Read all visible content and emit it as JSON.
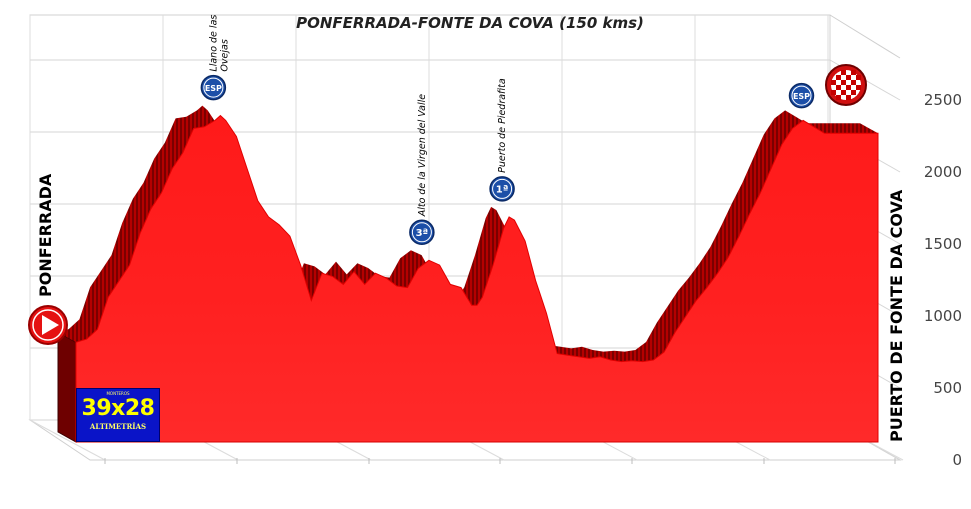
{
  "chart_data": {
    "type": "area",
    "title": "PONFERRADA-FONTE DA COVA (150 kms)",
    "start_label": "PONFERRADA",
    "finish_label": "PUERTO DE FONTE DA COVA",
    "y_ticks": [
      "0",
      "500",
      "1000",
      "1500",
      "2000",
      "2500"
    ],
    "ylim": [
      0,
      2500
    ],
    "xlim": [
      0,
      150
    ],
    "grid": true,
    "fill_color": "#ff1a1a",
    "series": [
      {
        "x": [
          0,
          2,
          4,
          6,
          8,
          10,
          12,
          14,
          16,
          18,
          20,
          22,
          24,
          26,
          27,
          28,
          30,
          32,
          34,
          36,
          38,
          40,
          42,
          44,
          46,
          48,
          50,
          52,
          54,
          56,
          58,
          60,
          62,
          64,
          66,
          68,
          70,
          72,
          74,
          75,
          76,
          78,
          80,
          81,
          82,
          84,
          86,
          87,
          88,
          90,
          92,
          94,
          96,
          98,
          100,
          102,
          104,
          106,
          108,
          110,
          112,
          114,
          116,
          118,
          120,
          122,
          124,
          126,
          128,
          130,
          132,
          134,
          136,
          138,
          140,
          142,
          144,
          146,
          148,
          150
        ],
        "y": [
          620,
          640,
          700,
          900,
          1000,
          1100,
          1300,
          1450,
          1550,
          1700,
          1800,
          1950,
          1960,
          2000,
          2030,
          2000,
          1900,
          1700,
          1500,
          1400,
          1350,
          1280,
          1100,
          880,
          1050,
          1030,
          980,
          1060,
          980,
          1050,
          1020,
          970,
          960,
          1080,
          1130,
          1100,
          980,
          960,
          850,
          850,
          900,
          1100,
          1330,
          1400,
          1380,
          1250,
          1000,
          900,
          800,
          550,
          540,
          530,
          520,
          530,
          510,
          500,
          505,
          500,
          510,
          560,
          680,
          780,
          880,
          960,
          1050,
          1150,
          1280,
          1420,
          1550,
          1700,
          1850,
          1950,
          2000,
          1960,
          1920,
          1920,
          1920,
          1920,
          1920,
          1920
        ]
      }
    ],
    "climbs": [
      {
        "name": "Llano de las Ovejas",
        "lines": [
          "Llano de las",
          "Ovejas"
        ],
        "badge": "ESP",
        "km": 27
      },
      {
        "name": "Alto de la Virgen del Valle",
        "lines": [
          "Alto de la Virgen del Valle"
        ],
        "badge": "3ª",
        "km": 66
      },
      {
        "name": "Puerto de Piedrafita",
        "lines": [
          "Puerto de Piedrafita"
        ],
        "badge": "1ª",
        "km": 81
      },
      {
        "name": "Puerto de Fonte da Cova",
        "lines": [],
        "badge": "ESP",
        "km": 137
      }
    ]
  },
  "logo": {
    "top_text": "MONTEROS",
    "main_text": "39x28",
    "sub_text": "ALTIMETRÍAS"
  }
}
